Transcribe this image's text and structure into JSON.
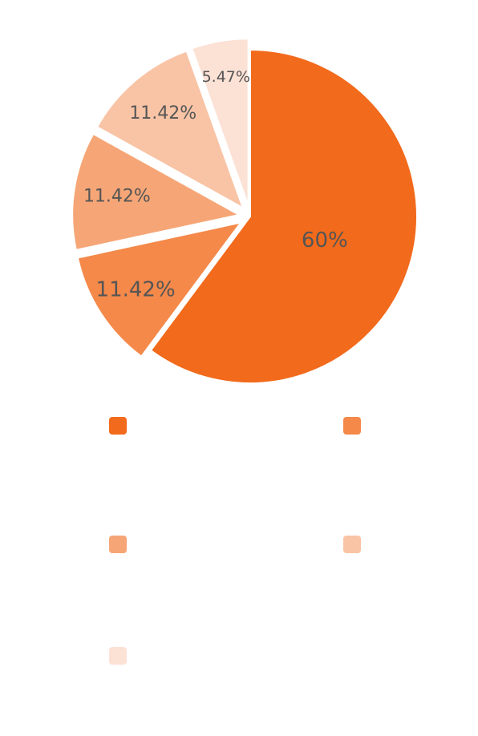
{
  "chart_data": {
    "type": "pie",
    "exploded": true,
    "labels_show": "percent",
    "slices": [
      {
        "value": 60,
        "label": "60%",
        "color": "#F26A1B"
      },
      {
        "value": 11.42,
        "label": "11.42%",
        "color": "#F4894A"
      },
      {
        "value": 11.42,
        "label": "11.42%",
        "color": "#F6A676"
      },
      {
        "value": 11.42,
        "label": "11.42%",
        "color": "#F9C4A6"
      },
      {
        "value": 5.47,
        "label": "5.47%",
        "color": "#FCE1D5"
      }
    ],
    "legend": {
      "placement": "bottom",
      "columns": 2
    }
  }
}
